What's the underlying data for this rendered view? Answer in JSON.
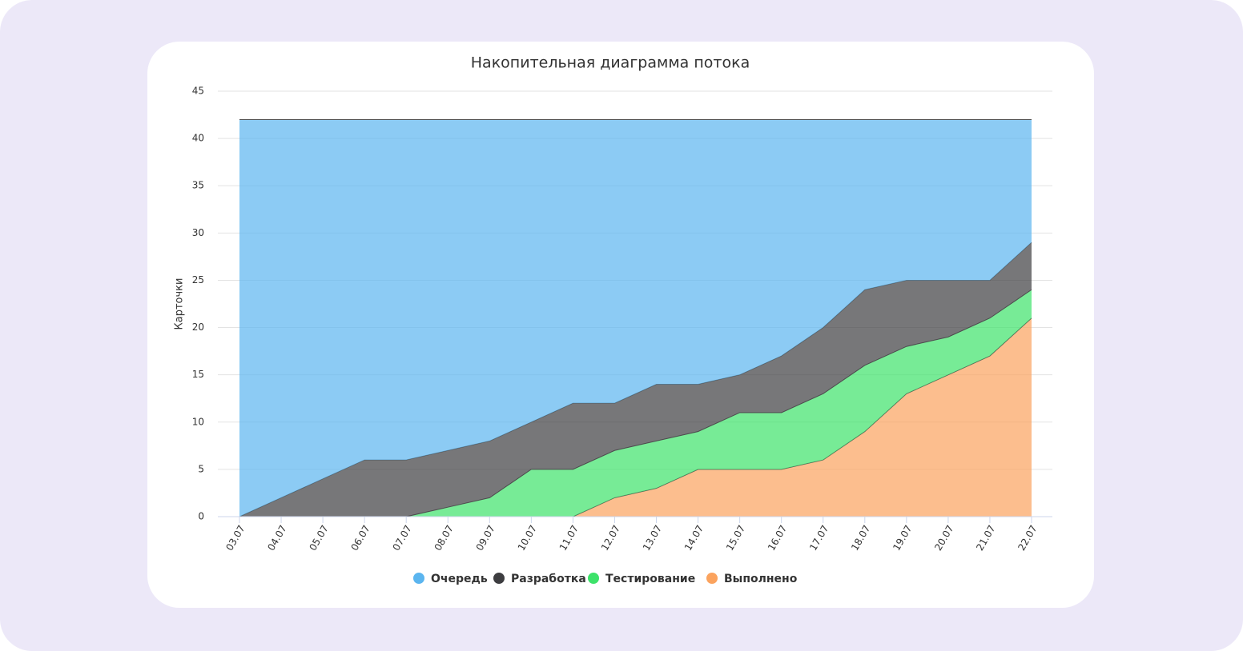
{
  "chart_data": {
    "type": "stacked_area",
    "title": "Накопительная диаграмма потока",
    "y_label": "Карточки",
    "categories": [
      "03.07",
      "04.07",
      "05.07",
      "06.07",
      "07.07",
      "08.07",
      "09.07",
      "10.07",
      "11.07",
      "12.07",
      "13.07",
      "14.07",
      "15.07",
      "16.07",
      "17.07",
      "18.07",
      "19.07",
      "20.07",
      "21.07",
      "22.07"
    ],
    "series": [
      {
        "name": "Очередь",
        "color": "#5bb5ef",
        "values": [
          42,
          40,
          38,
          36,
          36,
          35,
          34,
          32,
          30,
          30,
          28,
          28,
          27,
          25,
          22,
          18,
          17,
          17,
          17,
          13
        ]
      },
      {
        "name": "Разработка",
        "color": "#3d3d40",
        "values": [
          0,
          2,
          4,
          6,
          6,
          6,
          6,
          5,
          7,
          5,
          6,
          5,
          4,
          6,
          7,
          8,
          7,
          6,
          4,
          5
        ]
      },
      {
        "name": "Тестирование",
        "color": "#3de26a",
        "values": [
          0,
          0,
          0,
          0,
          0,
          1,
          2,
          5,
          5,
          5,
          5,
          4,
          6,
          6,
          7,
          7,
          5,
          4,
          4,
          3
        ]
      },
      {
        "name": "Выполнено",
        "color": "#fba35e",
        "values": [
          0,
          0,
          0,
          0,
          0,
          0,
          0,
          0,
          0,
          2,
          3,
          5,
          5,
          5,
          6,
          9,
          13,
          15,
          17,
          21
        ]
      }
    ],
    "ylim": [
      0,
      45
    ],
    "yticks": [
      0,
      5,
      10,
      15,
      20,
      25,
      30,
      35,
      40,
      45
    ],
    "grid": true,
    "legend": "bottom"
  }
}
